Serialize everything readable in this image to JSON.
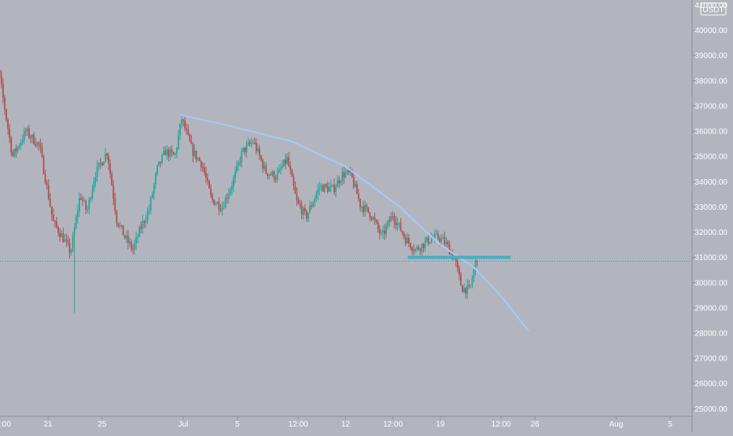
{
  "chart_data": {
    "type": "candlestick",
    "currency_label": "USDT",
    "background_color": "#b2b5be",
    "up_color": "#26a69a",
    "down_color": "#b0504f",
    "trendline_color": "#a9c7f7",
    "support_color": "#3cb1c9",
    "price_line_color": "#2a9d8f",
    "ylim": [
      24700,
      41200
    ],
    "y_ticks": [
      "25000.00",
      "26000.00",
      "27000.00",
      "28000.00",
      "29000.00",
      "30000.00",
      "31000.00",
      "32000.00",
      "33000.00",
      "34000.00",
      "35000.00",
      "36000.00",
      "37000.00",
      "38000.00",
      "39000.00",
      "40000.00"
    ],
    "top_tick_partial": "41000.00",
    "x_labels": [
      {
        "label": ":00",
        "t": -4.4
      },
      {
        "label": "21",
        "t": 0
      },
      {
        "label": "25",
        "t": 4
      },
      {
        "label": "Jul",
        "t": 10
      },
      {
        "label": "5",
        "t": 14
      },
      {
        "label": "12:00",
        "t": 18.5
      },
      {
        "label": "12",
        "t": 22
      },
      {
        "label": "12:00",
        "t": 25.5
      },
      {
        "label": "19",
        "t": 29
      },
      {
        "label": "12:00",
        "t": 33.5
      },
      {
        "label": "26",
        "t": 36
      },
      {
        "label": "Aug",
        "t": 42
      },
      {
        "label": "5",
        "t": 46
      }
    ],
    "current_price": 30850,
    "anchors": [
      [
        -4.4,
        39200
      ],
      [
        -3.5,
        38300
      ],
      [
        -2.5,
        35000
      ],
      [
        -1.5,
        36000
      ],
      [
        -0.5,
        35400
      ],
      [
        0.5,
        32400
      ],
      [
        1.2,
        31800
      ],
      [
        1.8,
        31200
      ],
      [
        2.5,
        33500
      ],
      [
        3.0,
        32800
      ],
      [
        3.6,
        34300
      ],
      [
        4.5,
        35200
      ],
      [
        5.2,
        32500
      ],
      [
        5.8,
        31800
      ],
      [
        6.4,
        31300
      ],
      [
        7.0,
        32200
      ],
      [
        7.6,
        32900
      ],
      [
        8.2,
        34500
      ],
      [
        8.8,
        35200
      ],
      [
        9.5,
        35000
      ],
      [
        10.0,
        36500
      ],
      [
        10.8,
        35200
      ],
      [
        11.5,
        34700
      ],
      [
        12.2,
        33300
      ],
      [
        13.0,
        33000
      ],
      [
        13.8,
        34000
      ],
      [
        14.5,
        35200
      ],
      [
        15.3,
        35600
      ],
      [
        16.2,
        34400
      ],
      [
        17.0,
        34200
      ],
      [
        17.8,
        34900
      ],
      [
        18.5,
        33200
      ],
      [
        19.2,
        32600
      ],
      [
        20.2,
        33800
      ],
      [
        21.2,
        33700
      ],
      [
        21.9,
        34300
      ],
      [
        22.5,
        34300
      ],
      [
        23.2,
        33100
      ],
      [
        24.0,
        32700
      ],
      [
        24.8,
        31800
      ],
      [
        25.6,
        32700
      ],
      [
        26.6,
        31700
      ],
      [
        27.3,
        31300
      ],
      [
        28.3,
        31700
      ],
      [
        29.0,
        31800
      ],
      [
        29.6,
        31500
      ],
      [
        30.2,
        30900
      ],
      [
        30.7,
        29800
      ],
      [
        31.3,
        29700
      ],
      [
        31.8,
        31000
      ]
    ],
    "wick_spikes": [
      {
        "t": 2.0,
        "low": 28800
      }
    ],
    "trendline": {
      "points": [
        [
          9.8,
          36650
        ],
        [
          13.5,
          36200
        ],
        [
          18.0,
          35600
        ],
        [
          22.0,
          34600
        ],
        [
          26.0,
          33000
        ],
        [
          29.0,
          31500
        ],
        [
          31.5,
          30600
        ],
        [
          33.6,
          29400
        ],
        [
          35.5,
          28100
        ]
      ]
    },
    "support_level": {
      "value": 31000,
      "t_start": 26.6,
      "t_end": 34.2
    }
  }
}
